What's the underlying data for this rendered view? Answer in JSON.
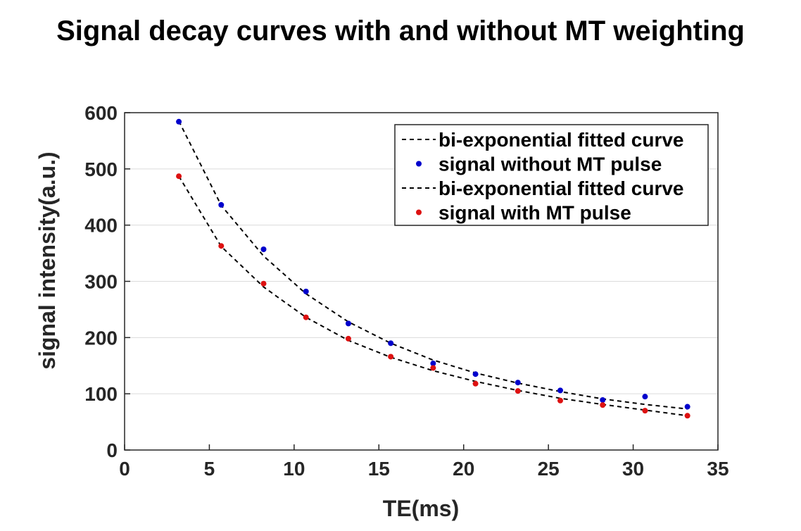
{
  "chart_data": {
    "type": "scatter",
    "title": "Signal decay curves with and without MT weighting",
    "xlabel": "TE(ms)",
    "ylabel": "signal intensity(a.u.)",
    "xlim": [
      0,
      35
    ],
    "ylim": [
      0,
      600
    ],
    "xticks": [
      0,
      5,
      10,
      15,
      20,
      25,
      30,
      35
    ],
    "yticks": [
      0,
      100,
      200,
      300,
      400,
      500,
      600
    ],
    "grid": "horizontal",
    "legend_position": "top-right",
    "series": [
      {
        "name": "bi-exponential fitted curve",
        "kind": "line",
        "style": "dashed",
        "color": "#000000",
        "x": [
          3.2,
          5.7,
          8.2,
          10.7,
          13.2,
          15.7,
          18.2,
          20.7,
          23.2,
          25.7,
          28.2,
          30.7,
          33.2
        ],
        "y": [
          585,
          435,
          345,
          278,
          228,
          190,
          160,
          137,
          119,
          104,
          91,
          81,
          73
        ]
      },
      {
        "name": "signal without MT pulse",
        "kind": "scatter",
        "color": "#0000cc",
        "x": [
          3.2,
          5.7,
          8.2,
          10.7,
          13.2,
          15.7,
          18.2,
          20.7,
          23.2,
          25.7,
          28.2,
          30.7,
          33.2
        ],
        "y": [
          584,
          436,
          357,
          282,
          225,
          190,
          154,
          135,
          120,
          106,
          89,
          95,
          77
        ]
      },
      {
        "name": "bi-exponential fitted curve",
        "kind": "line",
        "style": "dashed",
        "color": "#000000",
        "x": [
          3.2,
          5.7,
          8.2,
          10.7,
          13.2,
          15.7,
          18.2,
          20.7,
          23.2,
          25.7,
          28.2,
          30.7,
          33.2
        ],
        "y": [
          487,
          362,
          290,
          236,
          195,
          165,
          141,
          122,
          106,
          92,
          81,
          71,
          61
        ]
      },
      {
        "name": "signal with MT pulse",
        "kind": "scatter",
        "color": "#dd1111",
        "x": [
          3.2,
          5.7,
          8.2,
          10.7,
          13.2,
          15.7,
          18.2,
          20.7,
          23.2,
          25.7,
          28.2,
          30.7,
          33.2
        ],
        "y": [
          487,
          363,
          296,
          236,
          198,
          166,
          146,
          118,
          105,
          88,
          80,
          70,
          61
        ]
      }
    ]
  }
}
